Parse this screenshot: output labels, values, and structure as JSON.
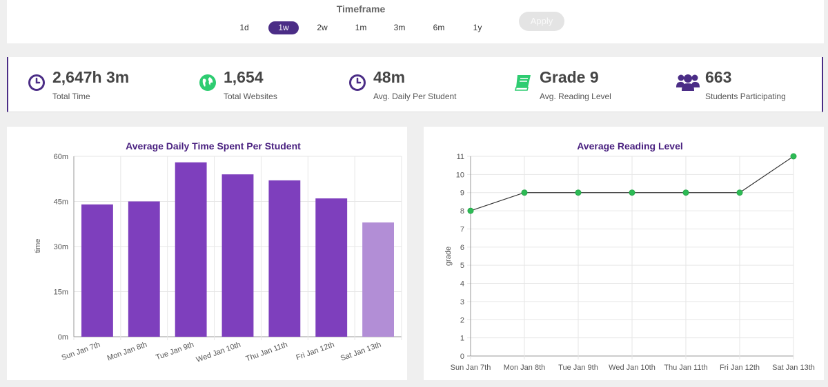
{
  "timeframe": {
    "title": "Timeframe",
    "options": [
      "1d",
      "1w",
      "2w",
      "1m",
      "3m",
      "6m",
      "1y"
    ],
    "selected": "1w",
    "apply_label": "Apply"
  },
  "stats": [
    {
      "icon": "clock-icon",
      "value": "2,647h 3m",
      "label": "Total Time",
      "color": "#4b2d86"
    },
    {
      "icon": "globe-icon",
      "value": "1,654",
      "label": "Total Websites",
      "color": "#2ecc71"
    },
    {
      "icon": "clock-icon",
      "value": "48m",
      "label": "Avg. Daily Per Student",
      "color": "#4b2d86"
    },
    {
      "icon": "book-icon",
      "value": "Grade 9",
      "label": "Avg. Reading Level",
      "color": "#2ecc71"
    },
    {
      "icon": "users-icon",
      "value": "663",
      "label": "Students Participating",
      "color": "#4b2d86"
    }
  ],
  "colors": {
    "accent": "#4b2d86",
    "bar": "#7e3fbd",
    "bar_light": "#b28ed6",
    "green": "#2ecc71"
  },
  "chart_data": [
    {
      "type": "bar",
      "title": "Average Daily Time Spent Per Student",
      "xlabel": "",
      "ylabel": "time",
      "categories": [
        "Sun Jan 7th",
        "Mon Jan 8th",
        "Tue Jan 9th",
        "Wed Jan 10th",
        "Thu Jan 11th",
        "Fri Jan 12th",
        "Sat Jan 13th"
      ],
      "values": [
        44,
        45,
        58,
        54,
        52,
        46,
        38
      ],
      "value_unit": "minutes",
      "ylim": [
        0,
        60
      ],
      "yticks": [
        0,
        15,
        30,
        45,
        60
      ],
      "ytick_labels": [
        "0m",
        "15m",
        "30m",
        "45m",
        "60m"
      ],
      "highlight_last": true,
      "grid": true
    },
    {
      "type": "line",
      "title": "Average Reading Level",
      "xlabel": "",
      "ylabel": "grade",
      "categories": [
        "Sun Jan 7th",
        "Mon Jan 8th",
        "Tue Jan 9th",
        "Wed Jan 10th",
        "Thu Jan 11th",
        "Fri Jan 12th",
        "Sat Jan 13th"
      ],
      "values": [
        8,
        9,
        9,
        9,
        9,
        9,
        11
      ],
      "ylim": [
        0,
        11
      ],
      "yticks": [
        0,
        1,
        2,
        3,
        4,
        5,
        6,
        7,
        8,
        9,
        10,
        11
      ],
      "grid": true
    }
  ]
}
